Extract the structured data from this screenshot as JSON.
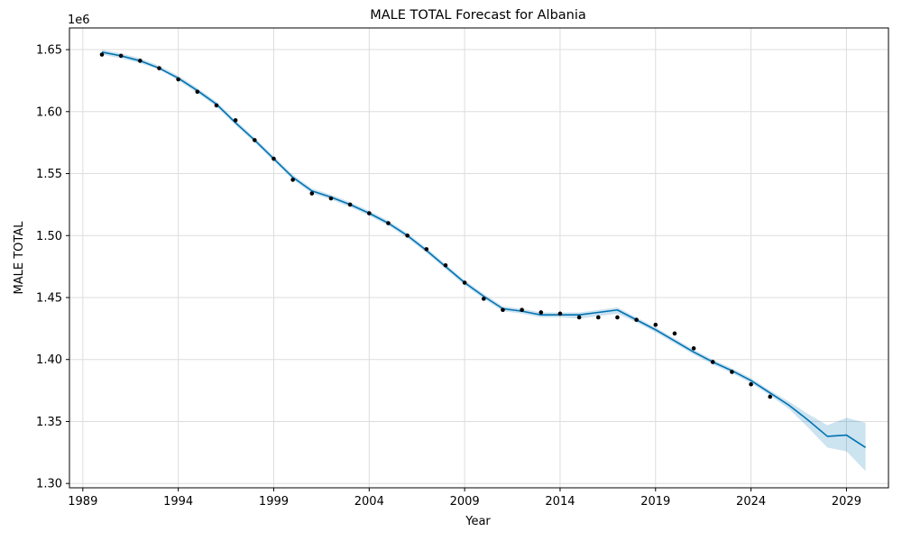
{
  "chart_data": {
    "type": "line",
    "title": "MALE TOTAL Forecast for Albania",
    "xlabel": "Year",
    "ylabel": "MALE TOTAL",
    "y_offset_label": "1e6",
    "xlim": [
      1988.3,
      2031.2
    ],
    "ylim": [
      1.2965,
      1.6675
    ],
    "x_ticks": [
      1989,
      1994,
      1999,
      2004,
      2009,
      2014,
      2019,
      2024,
      2029
    ],
    "y_ticks": [
      1.3,
      1.35,
      1.4,
      1.45,
      1.5,
      1.55,
      1.6,
      1.65
    ],
    "y_tick_labels": [
      "1.30",
      "1.35",
      "1.40",
      "1.45",
      "1.50",
      "1.55",
      "1.60",
      "1.65"
    ],
    "grid": true,
    "colors": {
      "forecast_line": "#0072b2",
      "interval_fill": "#0072b2",
      "observed_points": "#000000",
      "grid": "#dddddd"
    },
    "observed": {
      "x": [
        1990,
        1991,
        1992,
        1993,
        1994,
        1995,
        1996,
        1997,
        1998,
        1999,
        2000,
        2001,
        2002,
        2003,
        2004,
        2005,
        2006,
        2007,
        2008,
        2009,
        2010,
        2011,
        2012,
        2013,
        2014,
        2015,
        2016,
        2017,
        2018,
        2019,
        2020,
        2021,
        2022,
        2023,
        2024,
        2025
      ],
      "y": [
        1.646,
        1.645,
        1.641,
        1.635,
        1.626,
        1.616,
        1.605,
        1.593,
        1.577,
        1.562,
        1.545,
        1.534,
        1.53,
        1.525,
        1.518,
        1.51,
        1.5,
        1.489,
        1.476,
        1.462,
        1.449,
        1.44,
        1.44,
        1.438,
        1.437,
        1.434,
        1.434,
        1.434,
        1.432,
        1.428,
        1.421,
        1.409,
        1.398,
        1.39,
        1.38,
        1.37
      ]
    },
    "forecast": {
      "x": [
        1990,
        1991,
        1992,
        1993,
        1994,
        1995,
        1996,
        1997,
        1998,
        1999,
        2000,
        2001,
        2002,
        2003,
        2004,
        2005,
        2006,
        2007,
        2008,
        2009,
        2010,
        2011,
        2012,
        2013,
        2014,
        2015,
        2016,
        2017,
        2018,
        2019,
        2020,
        2021,
        2022,
        2023,
        2024,
        2025,
        2026,
        2027,
        2028,
        2029,
        2030
      ],
      "yhat": [
        1.648,
        1.645,
        1.641,
        1.635,
        1.627,
        1.617,
        1.606,
        1.591,
        1.577,
        1.562,
        1.547,
        1.536,
        1.531,
        1.525,
        1.518,
        1.51,
        1.5,
        1.488,
        1.475,
        1.462,
        1.451,
        1.441,
        1.439,
        1.436,
        1.436,
        1.436,
        1.438,
        1.44,
        1.432,
        1.424,
        1.415,
        1.406,
        1.398,
        1.391,
        1.383,
        1.373,
        1.363,
        1.351,
        1.338,
        1.339,
        1.329
      ],
      "lower": [
        1.646,
        1.643,
        1.639,
        1.634,
        1.625,
        1.615,
        1.604,
        1.589,
        1.575,
        1.56,
        1.545,
        1.534,
        1.529,
        1.523,
        1.516,
        1.508,
        1.498,
        1.486,
        1.473,
        1.46,
        1.449,
        1.439,
        1.437,
        1.434,
        1.434,
        1.433,
        1.435,
        1.437,
        1.43,
        1.422,
        1.413,
        1.404,
        1.396,
        1.389,
        1.381,
        1.371,
        1.36,
        1.345,
        1.329,
        1.326,
        1.31
      ],
      "upper": [
        1.65,
        1.647,
        1.643,
        1.637,
        1.629,
        1.619,
        1.608,
        1.593,
        1.579,
        1.564,
        1.549,
        1.538,
        1.533,
        1.527,
        1.52,
        1.512,
        1.502,
        1.49,
        1.477,
        1.464,
        1.453,
        1.443,
        1.441,
        1.438,
        1.438,
        1.438,
        1.44,
        1.442,
        1.434,
        1.426,
        1.417,
        1.408,
        1.4,
        1.393,
        1.385,
        1.375,
        1.366,
        1.356,
        1.347,
        1.353,
        1.349
      ]
    }
  }
}
